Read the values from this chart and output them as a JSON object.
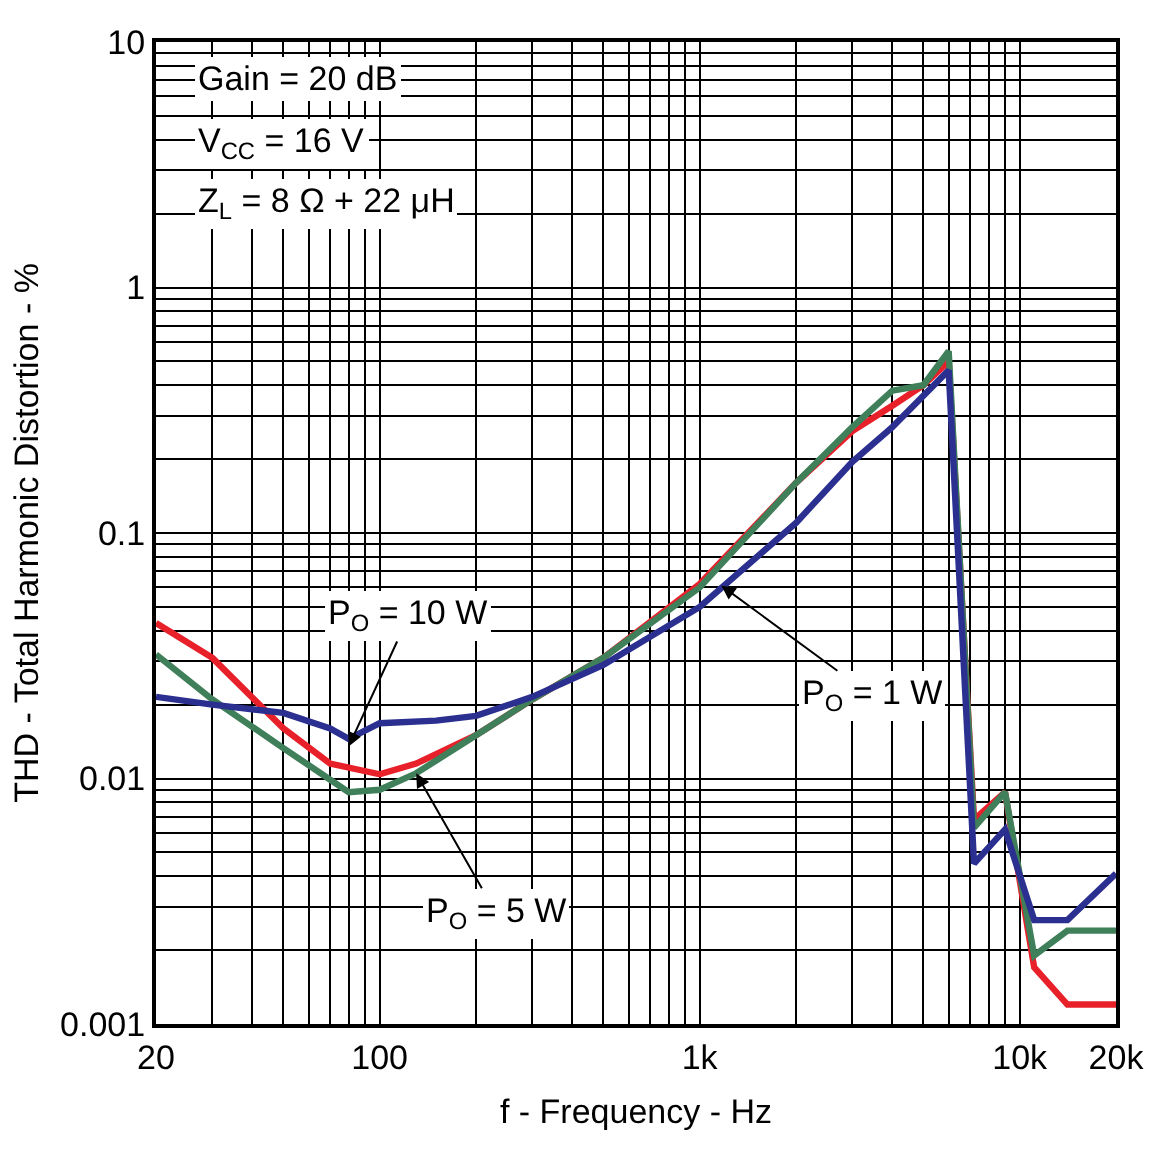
{
  "chart_data": {
    "type": "line",
    "xlabel": "f - Frequency - Hz",
    "ylabel": "THD - Total Harmonic Distortion - %",
    "log": "xy",
    "grid": true,
    "marker": "none",
    "line_style": "solid",
    "xlim": [
      20,
      20000
    ],
    "xticks": [
      20,
      100,
      {
        "value": 1000,
        "label": "1k"
      },
      {
        "value": 10000,
        "label": "10k"
      },
      {
        "value": 20000,
        "label": "20k"
      }
    ],
    "ylim": [
      0.001,
      10
    ],
    "yticks": [
      0.001,
      0.01,
      0.1,
      1,
      10
    ],
    "series": [
      {
        "color": "#e8202a",
        "x": [
          20,
          30,
          50,
          70,
          100,
          130,
          200,
          300,
          500,
          1000,
          2000,
          3000,
          4000,
          5000,
          6000,
          7200,
          9000,
          11100,
          14100,
          20000
        ],
        "values": [
          0.043,
          0.031,
          0.016,
          0.0115,
          0.0104,
          0.0115,
          0.015,
          0.021,
          0.031,
          0.062,
          0.16,
          0.26,
          0.33,
          0.4,
          0.5,
          0.0068,
          0.0088,
          0.0017,
          0.0012,
          0.0012
        ]
      },
      {
        "color": "#3f7f5a",
        "x": [
          20,
          30,
          50,
          80,
          100,
          130,
          200,
          300,
          500,
          1000,
          2000,
          3000,
          4000,
          5000,
          6000,
          7200,
          9000,
          11100,
          14100,
          20000
        ],
        "values": [
          0.032,
          0.021,
          0.0133,
          0.0088,
          0.009,
          0.0105,
          0.015,
          0.021,
          0.031,
          0.06,
          0.16,
          0.27,
          0.38,
          0.4,
          0.55,
          0.0063,
          0.0088,
          0.0019,
          0.0024,
          0.0024
        ]
      },
      {
        "color": "#2b3090",
        "x": [
          20,
          30,
          50,
          70,
          80,
          100,
          150,
          200,
          300,
          500,
          1000,
          2000,
          3000,
          4000,
          6000,
          7200,
          9000,
          11100,
          14100,
          20000
        ],
        "values": [
          0.0215,
          0.02,
          0.0185,
          0.016,
          0.0145,
          0.0168,
          0.0172,
          0.018,
          0.0215,
          0.029,
          0.05,
          0.11,
          0.195,
          0.27,
          0.46,
          0.0045,
          0.0062,
          0.00265,
          0.00265,
          0.0041
        ]
      }
    ],
    "annotations": [
      "Gain = 20 dB",
      "V$_{CC}$ = 16 V",
      "Z$_{L}$ = 8 Ω + 22 μH",
      {
        "text": "P$_{O}$ = 10 W",
        "x": 80,
        "y": 0.0135
      },
      {
        "text": "P$_{O}$ = 1 W",
        "x": 1170,
        "y": 0.061
      },
      {
        "text": "P$_{O}$ = 5 W",
        "x": 130,
        "y": 0.0105
      }
    ]
  }
}
